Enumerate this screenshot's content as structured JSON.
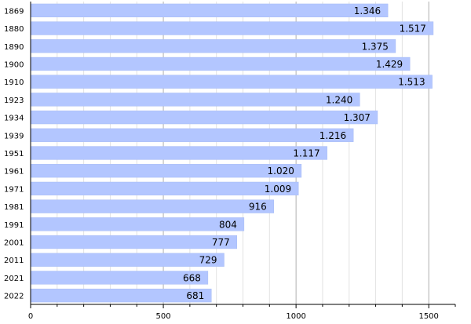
{
  "chart_data": {
    "type": "bar",
    "orientation": "horizontal",
    "categories": [
      "1869",
      "1880",
      "1890",
      "1900",
      "1910",
      "1923",
      "1934",
      "1939",
      "1951",
      "1961",
      "1971",
      "1981",
      "1991",
      "2001",
      "2011",
      "2021",
      "2022"
    ],
    "values": [
      1346,
      1517,
      1375,
      1429,
      1513,
      1240,
      1307,
      1216,
      1117,
      1020,
      1009,
      916,
      804,
      777,
      729,
      668,
      681
    ],
    "value_labels": [
      "1.346",
      "1.517",
      "1.375",
      "1.429",
      "1.513",
      "1.240",
      "1.307",
      "1.216",
      "1.117",
      "1.020",
      "1.009",
      "916",
      "804",
      "777",
      "729",
      "668",
      "681"
    ],
    "x_ticks": [
      0,
      500,
      1000,
      1500
    ],
    "x_tick_labels": [
      "0",
      "500",
      "1000",
      "1500"
    ],
    "xlim": [
      0,
      1600
    ],
    "grid": true,
    "title": "",
    "xlabel": "",
    "ylabel": "",
    "colors": {
      "bar": "#b3c6ff",
      "bar_edge": "#a8bcf5",
      "major_grid": "#b0b0b0",
      "minor_grid": "#e2e2e2",
      "axis": "#000000",
      "text": "#000000"
    }
  }
}
